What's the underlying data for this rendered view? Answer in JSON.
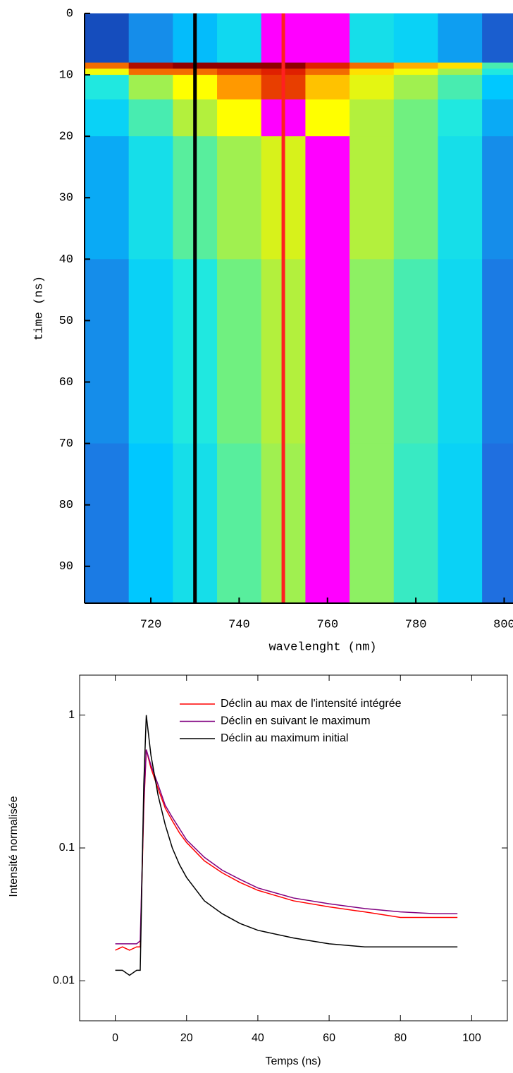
{
  "chart_data": [
    {
      "type": "heatmap",
      "xlabel": "wavelenght (nm)",
      "ylabel": "time (ns)",
      "x_edges": [
        705,
        715,
        725,
        735,
        745,
        755,
        765,
        775,
        785,
        795,
        805
      ],
      "y_edges": [
        0,
        8,
        9,
        10,
        14,
        20,
        40,
        70,
        96
      ],
      "z": [
        [
          0.1,
          0.25,
          0.33,
          0.4,
          1.0,
          1.0,
          0.42,
          0.38,
          0.28,
          0.15
        ],
        [
          0.85,
          0.93,
          0.95,
          0.95,
          0.95,
          0.9,
          0.85,
          0.8,
          0.75,
          0.5
        ],
        [
          0.7,
          0.85,
          0.85,
          0.88,
          0.9,
          0.85,
          0.75,
          0.7,
          0.6,
          0.45
        ],
        [
          0.45,
          0.6,
          0.72,
          0.82,
          0.88,
          0.78,
          0.68,
          0.6,
          0.5,
          0.35
        ],
        [
          0.38,
          0.5,
          0.62,
          0.72,
          1.0,
          0.72,
          0.62,
          0.55,
          0.45,
          0.3
        ],
        [
          0.3,
          0.42,
          0.52,
          0.6,
          0.66,
          1.0,
          0.62,
          0.55,
          0.42,
          0.25
        ],
        [
          0.25,
          0.38,
          0.45,
          0.55,
          0.62,
          1.0,
          0.58,
          0.5,
          0.4,
          0.22
        ],
        [
          0.22,
          0.35,
          0.42,
          0.52,
          0.6,
          1.0,
          0.58,
          0.48,
          0.38,
          0.2
        ]
      ],
      "colormap": [
        {
          "stop": 0,
          "color": "#0a2a9a"
        },
        {
          "stop": 0.2,
          "color": "#1f6fe0"
        },
        {
          "stop": 0.35,
          "color": "#00c8ff"
        },
        {
          "stop": 0.45,
          "color": "#20e8e0"
        },
        {
          "stop": 0.55,
          "color": "#70f080"
        },
        {
          "stop": 0.65,
          "color": "#d0f020"
        },
        {
          "stop": 0.72,
          "color": "#ffff00"
        },
        {
          "stop": 0.82,
          "color": "#ff9900"
        },
        {
          "stop": 0.9,
          "color": "#e02000"
        },
        {
          "stop": 0.95,
          "color": "#900000"
        },
        {
          "stop": 0.97,
          "color": "#ff00ff"
        },
        {
          "stop": 1,
          "color": "#ff00ff"
        }
      ],
      "markers": [
        {
          "x": 730,
          "color": "#000000"
        },
        {
          "x": 750,
          "color": "#ff2020"
        }
      ],
      "xlim": [
        705,
        802
      ],
      "ylim": [
        96,
        0
      ],
      "xticks": [
        720,
        740,
        760,
        780,
        800
      ],
      "yticks": [
        0,
        10,
        20,
        30,
        40,
        50,
        60,
        70,
        80,
        90
      ]
    },
    {
      "type": "line",
      "xlabel": "Temps (ns)",
      "ylabel": "Intensité normalisée",
      "log_y": true,
      "legend": "top-right",
      "x": [
        0,
        2,
        4,
        6,
        7,
        8,
        8.7,
        10,
        12,
        14,
        16,
        18,
        20,
        25,
        30,
        35,
        40,
        50,
        60,
        70,
        80,
        90,
        96
      ],
      "series": [
        {
          "name": "Déclin au max de l'intensité intégrée",
          "color": "#ff0000",
          "values": [
            0.017,
            0.018,
            0.017,
            0.018,
            0.018,
            0.2,
            0.55,
            0.4,
            0.28,
            0.2,
            0.16,
            0.13,
            0.11,
            0.08,
            0.065,
            0.055,
            0.048,
            0.04,
            0.036,
            0.033,
            0.03,
            0.03,
            0.03
          ]
        },
        {
          "name": "Déclin en suivant le maximum",
          "color": "#800080",
          "values": [
            0.019,
            0.019,
            0.019,
            0.019,
            0.02,
            0.22,
            0.55,
            0.42,
            0.3,
            0.21,
            0.17,
            0.14,
            0.115,
            0.085,
            0.068,
            0.058,
            0.05,
            0.042,
            0.038,
            0.035,
            0.033,
            0.032,
            0.032
          ]
        },
        {
          "name": "Déclin au maximum initial",
          "color": "#000000",
          "values": [
            0.012,
            0.012,
            0.011,
            0.012,
            0.012,
            0.3,
            1.0,
            0.5,
            0.25,
            0.15,
            0.1,
            0.075,
            0.06,
            0.04,
            0.032,
            0.027,
            0.024,
            0.021,
            0.019,
            0.018,
            0.018,
            0.018,
            0.018
          ]
        }
      ],
      "xlim": [
        -10,
        110
      ],
      "ylim": [
        0.005,
        2
      ],
      "xticks": [
        0,
        20,
        40,
        60,
        80,
        100
      ],
      "yticks": [
        0.01,
        0.1,
        1
      ]
    }
  ]
}
